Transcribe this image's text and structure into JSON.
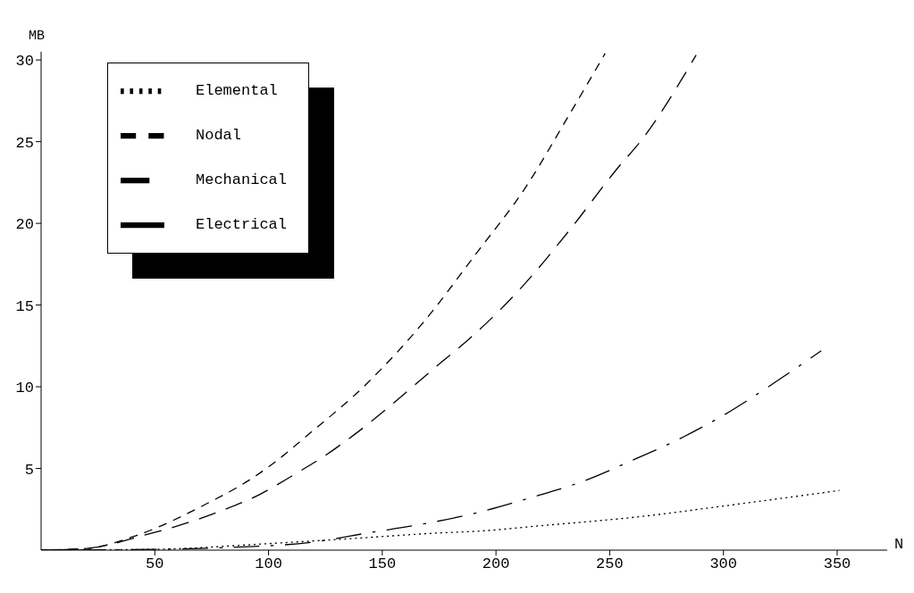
{
  "chart_data": {
    "type": "line",
    "xlabel": "N",
    "ylabel": "MB",
    "xlim": [
      0,
      372
    ],
    "ylim": [
      0,
      30.5
    ],
    "xticks": [
      50,
      100,
      150,
      200,
      250,
      300,
      350
    ],
    "yticks": [
      5,
      10,
      15,
      20,
      25,
      30
    ],
    "grid": false,
    "legend": "top left",
    "marker": "none",
    "series": [
      {
        "name": "Elemental",
        "color": "#000000",
        "line_style": "dotted",
        "x": [
          0,
          50,
          100,
          140,
          176,
          192,
          220,
          264,
          300,
          351
        ],
        "values": [
          0,
          0.05,
          0.4,
          0.74,
          1.06,
          1.16,
          1.5,
          2.06,
          2.7,
          3.65
        ]
      },
      {
        "name": "Nodal",
        "color": "#000000",
        "line_style": "dashed",
        "x": [
          0,
          20,
          42,
          75,
          87,
          102,
          116,
          144,
          169,
          191,
          213,
          232,
          248
        ],
        "values": [
          0,
          0.1,
          0.9,
          3.0,
          3.9,
          5.3,
          6.9,
          10.3,
          14.1,
          18.1,
          22.2,
          26.6,
          30.4
        ]
      },
      {
        "name": "Mechanical",
        "color": "#000000",
        "line_style": "dashed",
        "x": [
          0,
          20,
          45,
          65,
          81,
          96,
          111,
          125,
          138,
          176,
          188,
          212,
          233,
          253,
          264,
          288
        ],
        "values": [
          0,
          0.1,
          0.9,
          1.7,
          2.5,
          3.4,
          4.6,
          5.8,
          7.1,
          11.5,
          12.9,
          16.2,
          19.7,
          23.3,
          25.1,
          30.3
        ]
      },
      {
        "name": "Electrical",
        "color": "#000000",
        "line_style": "dashed",
        "x": [
          0,
          50,
          80,
          120,
          144,
          168,
          192,
          215,
          238,
          260,
          282,
          303,
          323,
          343
        ],
        "values": [
          0,
          0.05,
          0.15,
          0.5,
          1.06,
          1.6,
          2.3,
          3.2,
          4.2,
          5.5,
          6.9,
          8.5,
          10.3,
          12.2
        ]
      }
    ]
  }
}
